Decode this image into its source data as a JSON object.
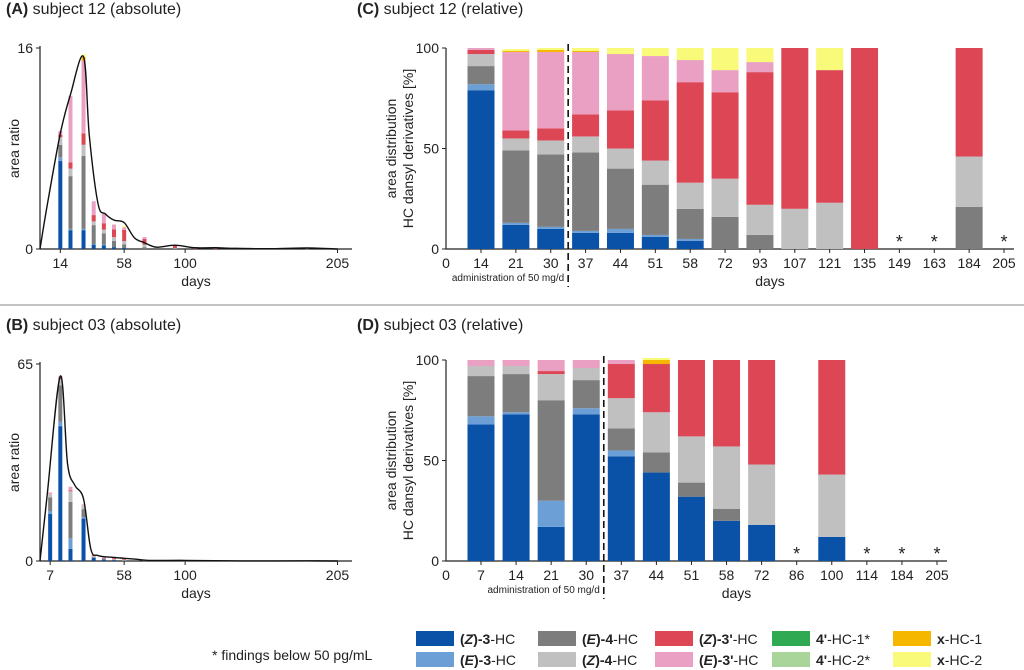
{
  "footnote": "* findings below 50 pg/mL",
  "legend": [
    {
      "id": "Z3",
      "bold": "(Z)-3",
      "rest": "-HC",
      "color": "#0a52a8"
    },
    {
      "id": "E3",
      "bold": "(E)-3",
      "rest": "-HC",
      "color": "#6b9fd6"
    },
    {
      "id": "E4",
      "bold": "(E)-4",
      "rest": "-HC",
      "color": "#7d7d7d"
    },
    {
      "id": "Z4",
      "bold": "(Z)-4",
      "rest": "-HC",
      "color": "#c0c0c0"
    },
    {
      "id": "Z3p",
      "bold": "(Z)-3'",
      "rest": "-HC",
      "color": "#dc4655"
    },
    {
      "id": "E3p",
      "bold": "(E)-3'",
      "rest": "-HC",
      "color": "#eaa0c2"
    },
    {
      "id": "HC41",
      "bold": "4'",
      "rest": "-HC-1*",
      "color": "#2faa52"
    },
    {
      "id": "HC42",
      "bold": "4'",
      "rest": "-HC-2*",
      "color": "#a9d59a"
    },
    {
      "id": "x1",
      "bold": "x",
      "rest": "-HC-1",
      "color": "#f5b700"
    },
    {
      "id": "x2",
      "bold": "x",
      "rest": "-HC-2",
      "color": "#fafa7a"
    }
  ],
  "chart_data": [
    {
      "panel": "(A)",
      "title": "subject 12 (absolute)",
      "type": "bar",
      "stacked": true,
      "with_curve": true,
      "xlabel": "days",
      "ylabel": "area ratio",
      "xlim": [
        0,
        215
      ],
      "ylim": [
        0,
        16
      ],
      "xticks": [
        14,
        58,
        100,
        205
      ],
      "yticks": [
        0,
        16
      ],
      "bars": [
        {
          "x": 14,
          "segments": {
            "Z3": 7.0,
            "E3": 0.3,
            "E4": 1.0,
            "Z4": 0.6,
            "Z3p": 0.2,
            "E3p": 0.3
          }
        },
        {
          "x": 21,
          "segments": {
            "Z3": 1.5,
            "E3": 0.1,
            "E4": 4.2,
            "Z4": 0.6,
            "Z3p": 0.5,
            "E3p": 5.3
          }
        },
        {
          "x": 30,
          "segments": {
            "Z3": 1.5,
            "E3": 0.1,
            "E4": 5.8,
            "Z4": 0.9,
            "Z3p": 0.9,
            "E3p": 5.8,
            "x1": 0.3,
            "x2": 0.2
          }
        },
        {
          "x": 37,
          "segments": {
            "Z3": 0.35,
            "E3": 0.05,
            "E4": 1.5,
            "Z4": 0.3,
            "Z3p": 0.5,
            "E3p": 1.1
          }
        },
        {
          "x": 44,
          "segments": {
            "Z3": 0.3,
            "E3": 0.05,
            "E4": 0.9,
            "Z4": 0.3,
            "Z3p": 0.5,
            "E3p": 0.8
          }
        },
        {
          "x": 51,
          "segments": {
            "Z3": 0.15,
            "E4": 0.5,
            "Z4": 0.3,
            "Z3p": 0.6,
            "E3p": 0.4
          }
        },
        {
          "x": 58,
          "segments": {
            "Z3": 0.08,
            "E4": 0.3,
            "Z4": 0.25,
            "Z3p": 0.9,
            "E3p": 0.2,
            "x2": 0.1
          }
        },
        {
          "x": 72,
          "segments": {
            "E4": 0.15,
            "Z4": 0.2,
            "Z3p": 0.45,
            "E3p": 0.15
          }
        },
        {
          "x": 93,
          "segments": {
            "E4": 0.02,
            "Z4": 0.05,
            "Z3p": 0.22
          }
        },
        {
          "x": 107,
          "segments": {
            "Z4": 0.02,
            "Z3p": 0.08
          }
        },
        {
          "x": 121,
          "segments": {
            "Z4": 0.02,
            "Z3p": 0.06
          }
        },
        {
          "x": 135,
          "segments": {
            "Z3p": 0.05
          }
        },
        {
          "x": 184,
          "segments": {
            "E4": 0.01,
            "Z4": 0.01,
            "Z3p": 0.03
          }
        }
      ],
      "curve": [
        [
          0,
          0
        ],
        [
          5,
          3.5
        ],
        [
          14,
          9.2
        ],
        [
          21,
          12.3
        ],
        [
          30,
          15.3
        ],
        [
          34,
          9
        ],
        [
          40,
          3.6
        ],
        [
          45,
          2.8
        ],
        [
          51,
          2.3
        ],
        [
          58,
          2.1
        ],
        [
          65,
          0.9
        ],
        [
          72,
          0.5
        ],
        [
          80,
          0.15
        ],
        [
          93,
          0.3
        ],
        [
          107,
          0.1
        ],
        [
          121,
          0.1
        ],
        [
          135,
          0.05
        ],
        [
          160,
          0.02
        ],
        [
          184,
          0.08
        ],
        [
          205,
          0
        ]
      ]
    },
    {
      "panel": "(B)",
      "title": "subject 03 (absolute)",
      "type": "bar",
      "stacked": true,
      "with_curve": true,
      "xlabel": "days",
      "ylabel": "area ratio",
      "xlim": [
        0,
        215
      ],
      "ylim": [
        0,
        65
      ],
      "xticks": [
        7,
        58,
        100,
        205
      ],
      "yticks": [
        0,
        65
      ],
      "bars": [
        {
          "x": 7,
          "segments": {
            "Z3": 15.5,
            "E3": 1.0,
            "E4": 4.5,
            "Z4": 1.0,
            "E3p": 0.6
          }
        },
        {
          "x": 14,
          "segments": {
            "Z3": 44.5,
            "E3": 1.5,
            "E4": 12.0,
            "Z4": 2.0,
            "Z3p": 0.4,
            "E3p": 0.6
          }
        },
        {
          "x": 21,
          "segments": {
            "Z3": 4.0,
            "E3": 3.5,
            "E4": 12.0,
            "Z4": 3.5,
            "Z3p": 0.3,
            "E3p": 1.2
          }
        },
        {
          "x": 30,
          "segments": {
            "Z3": 14.0,
            "E3": 0.5,
            "E4": 2.6,
            "Z4": 1.3,
            "E3p": 0.3
          }
        },
        {
          "x": 37,
          "segments": {
            "Z3": 1.0,
            "E3": 0.1,
            "E4": 0.3,
            "Z4": 0.3,
            "Z3p": 0.3
          }
        },
        {
          "x": 44,
          "segments": {
            "Z3": 0.5,
            "E4": 0.1,
            "Z4": 0.2,
            "Z3p": 0.3,
            "E3p": 0.05
          }
        },
        {
          "x": 51,
          "segments": {
            "Z3": 0.3,
            "E4": 0.1,
            "Z4": 0.2,
            "Z3p": 0.3
          }
        },
        {
          "x": 58,
          "segments": {
            "Z3": 0.1,
            "E4": 0.05,
            "Z4": 0.2,
            "Z3p": 0.25
          }
        },
        {
          "x": 72,
          "segments": {
            "Z3": 0.05,
            "Z4": 0.1,
            "Z3p": 0.15
          }
        },
        {
          "x": 100,
          "segments": {
            "Z3": 0.02,
            "Z4": 0.05,
            "Z3p": 0.1
          }
        }
      ],
      "curve": [
        [
          0,
          0
        ],
        [
          5,
          22
        ],
        [
          14,
          61
        ],
        [
          19,
          32
        ],
        [
          24,
          25
        ],
        [
          30,
          20.5
        ],
        [
          35,
          4
        ],
        [
          40,
          1.8
        ],
        [
          50,
          1.2
        ],
        [
          58,
          0.9
        ],
        [
          66,
          0.6
        ],
        [
          75,
          0.2
        ],
        [
          100,
          0.2
        ],
        [
          130,
          0.05
        ],
        [
          160,
          0.02
        ],
        [
          184,
          0.05
        ],
        [
          205,
          0
        ]
      ]
    },
    {
      "panel": "(C)",
      "title": "subject 12 (relative)",
      "type": "bar",
      "stacked": true,
      "xlabel": "days",
      "ylabel": "area distribution HC dansyl derivatives [%]",
      "ylabel_lines": [
        "area distribution",
        "HC dansyl derivatives [%]"
      ],
      "ylim": [
        0,
        100
      ],
      "yticks": [
        0,
        50,
        100
      ],
      "zero_label": "0",
      "dashed_line_after": "30",
      "annotation": "administration of 50 mg/d",
      "categories": [
        "14",
        "21",
        "30",
        "37",
        "44",
        "51",
        "58",
        "72",
        "93",
        "107",
        "121",
        "135",
        "149",
        "163",
        "184",
        "205"
      ],
      "starred": [
        "149",
        "163",
        "205"
      ],
      "series": [
        {
          "id": "Z3",
          "values": [
            79,
            12,
            10,
            8,
            8,
            6,
            4,
            0,
            0,
            0,
            0,
            0,
            0,
            0,
            0,
            0
          ]
        },
        {
          "id": "E3",
          "values": [
            3,
            1,
            1,
            1,
            2,
            1,
            1,
            0,
            0,
            0,
            0,
            0,
            0,
            0,
            0,
            0
          ]
        },
        {
          "id": "E4",
          "values": [
            9,
            36,
            36,
            39,
            30,
            25,
            15,
            16,
            7,
            0,
            0,
            0,
            0,
            0,
            21,
            0
          ]
        },
        {
          "id": "Z4",
          "values": [
            6,
            6,
            7,
            8,
            10,
            12,
            13,
            19,
            15,
            20,
            23,
            0,
            0,
            0,
            25,
            0
          ]
        },
        {
          "id": "Z3p",
          "values": [
            2,
            4,
            6,
            11,
            19,
            30,
            50,
            43,
            66,
            80,
            66,
            100,
            0,
            0,
            54,
            0
          ]
        },
        {
          "id": "E3p",
          "values": [
            1,
            39,
            38,
            31,
            28,
            22,
            11,
            11,
            5,
            0,
            0,
            0,
            0,
            0,
            0,
            0
          ]
        },
        {
          "id": "x1",
          "values": [
            0,
            0.5,
            1,
            0.5,
            0,
            0,
            0,
            0,
            0,
            0,
            0,
            0,
            0,
            0,
            0,
            0
          ]
        },
        {
          "id": "x2",
          "values": [
            0,
            1,
            1,
            1.5,
            3,
            4,
            6,
            11,
            7,
            0,
            11,
            0,
            0,
            0,
            0,
            0
          ]
        }
      ]
    },
    {
      "panel": "(D)",
      "title": "subject 03 (relative)",
      "type": "bar",
      "stacked": true,
      "xlabel": "days",
      "ylabel": "area distribution HC dansyl derivatives [%]",
      "ylabel_lines": [
        "area distribution",
        "HC dansyl derivatives [%]"
      ],
      "ylim": [
        0,
        100
      ],
      "yticks": [
        0,
        50,
        100
      ],
      "zero_label": "0",
      "dashed_line_after": "30",
      "annotation": "administration of 50 mg/d",
      "categories": [
        "7",
        "14",
        "21",
        "30",
        "37",
        "44",
        "51",
        "58",
        "72",
        "86",
        "100",
        "114",
        "184",
        "205"
      ],
      "starred": [
        "86",
        "114",
        "184",
        "205"
      ],
      "series": [
        {
          "id": "Z3",
          "values": [
            68,
            73,
            17,
            73,
            52,
            44,
            32,
            20,
            18,
            0,
            12,
            0,
            0,
            0
          ]
        },
        {
          "id": "E3",
          "values": [
            4,
            1,
            13,
            3,
            3,
            0,
            0,
            0,
            0,
            0,
            0,
            0,
            0,
            0
          ]
        },
        {
          "id": "E4",
          "values": [
            20,
            19,
            50,
            14,
            11,
            10,
            7,
            6,
            0,
            0,
            0,
            0,
            0,
            0
          ]
        },
        {
          "id": "Z4",
          "values": [
            5,
            4,
            13,
            6,
            15,
            20,
            23,
            31,
            30,
            0,
            31,
            0,
            0,
            0
          ]
        },
        {
          "id": "Z3p",
          "values": [
            0,
            0,
            1.5,
            0,
            17,
            24,
            38,
            43,
            52,
            0,
            57,
            0,
            0,
            0
          ]
        },
        {
          "id": "E3p",
          "values": [
            3,
            3,
            5.5,
            4,
            2,
            0,
            0,
            0,
            0,
            0,
            0,
            0,
            0,
            0
          ]
        },
        {
          "id": "x1",
          "values": [
            0,
            0,
            0,
            0,
            0,
            2,
            0,
            0,
            0,
            0,
            0,
            0,
            0,
            0
          ]
        },
        {
          "id": "x2",
          "values": [
            0,
            0,
            0,
            0,
            0,
            1,
            0,
            0,
            0,
            0,
            0,
            0,
            0,
            0
          ]
        }
      ]
    }
  ]
}
